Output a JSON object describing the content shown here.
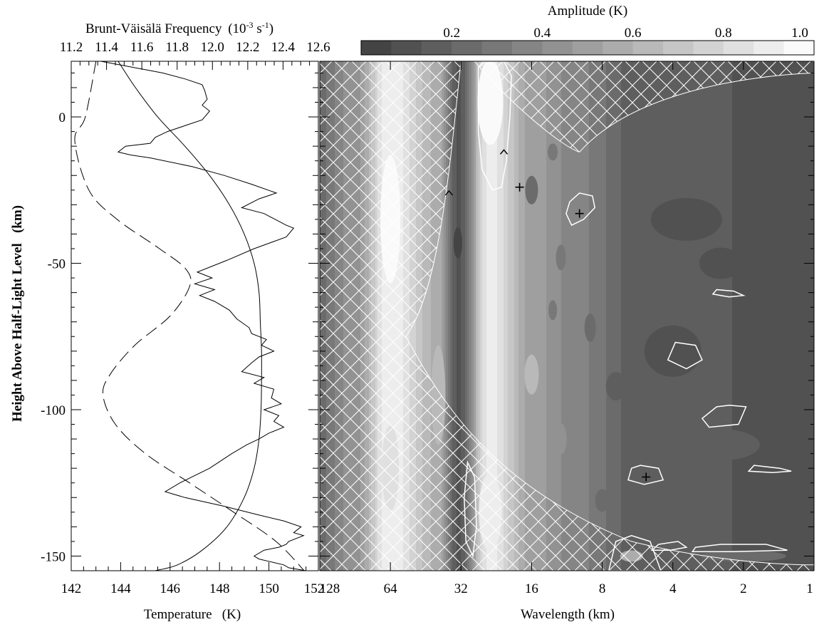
{
  "chart_data": [
    {
      "type": "line",
      "panel": "profiles",
      "xlabel": "Temperature   (K)",
      "ylabel": "Height Above Half-Light Level   (km)",
      "xlim": [
        142,
        152
      ],
      "ylim": [
        -155,
        19
      ],
      "xticks": [
        142,
        144,
        146,
        148,
        150,
        152
      ],
      "yticks": [
        0,
        -50,
        -100,
        -150
      ],
      "top_axis": {
        "label": "Brunt-Väisälä Frequency",
        "unit_prefix": "(10",
        "unit_exp1": "-3",
        "unit_mid": " s",
        "unit_exp2": "-1",
        "unit_suffix": ")",
        "ticks": [
          "11.2",
          "11.4",
          "11.6",
          "11.8",
          "12.0",
          "12.2",
          "12.4",
          "12.6"
        ],
        "range": [
          11.2,
          12.6
        ]
      },
      "series": [
        {
          "style": "solid-smooth",
          "axis": "temperature",
          "x": [
            143.9,
            144.6,
            145.5,
            146.6,
            147.6,
            148.4,
            149.0,
            149.4,
            149.6,
            149.65,
            149.7,
            149.7,
            149.68,
            149.6,
            149.4,
            149.0,
            148.3,
            147.3,
            146.3,
            145.4
          ],
          "y": [
            19,
            10,
            0,
            -10,
            -20,
            -30,
            -40,
            -50,
            -60,
            -70,
            -80,
            -90,
            -100,
            -110,
            -120,
            -130,
            -140,
            -148,
            -153,
            -155
          ]
        },
        {
          "style": "dashed",
          "axis": "brunt_vaisala",
          "x": [
            11.34,
            11.28,
            11.22,
            11.3,
            11.46,
            11.7,
            11.85,
            11.87,
            11.76,
            11.56,
            11.42,
            11.38,
            11.45,
            11.62,
            11.87,
            12.12,
            12.36,
            12.52
          ],
          "y": [
            19,
            0,
            -8,
            -25,
            -35,
            -45,
            -52,
            -58,
            -68,
            -78,
            -88,
            -95,
            -105,
            -115,
            -125,
            -135,
            -145,
            -155
          ]
        },
        {
          "style": "solid-detailed",
          "axis": "temperature",
          "x": [
            143.2,
            145.7,
            146.6,
            147.3,
            147.4,
            147.5,
            147.3,
            147.6,
            147.3,
            146.6,
            145.9,
            145.4,
            145.2,
            144.2,
            143.9,
            144.4,
            145.2,
            146.9,
            148.2,
            149.3,
            150.3,
            149.6,
            148.9,
            149.8,
            150.7,
            151.0,
            150.7,
            149.4,
            148.3,
            147.1,
            147.7,
            147.0,
            147.8,
            147.2,
            147.8,
            148.4,
            148.7,
            149.2,
            149.3,
            149.9,
            149.7,
            150.2,
            149.6,
            149.3,
            148.9,
            149.8,
            149.4,
            150.2,
            150.1,
            150.5,
            149.8,
            150.4,
            150.2,
            150.6,
            150.0,
            149.6,
            149.1,
            148.5,
            147.6,
            146.4,
            145.8,
            146.6,
            148.2,
            149.6,
            150.6,
            151.3,
            151.0,
            151.4,
            150.8,
            150.7,
            150.4,
            149.8,
            149.4,
            149.6,
            150.1,
            150.6,
            150.8,
            151.5
          ],
          "y": [
            19,
            15,
            13,
            11,
            9,
            6,
            4,
            2,
            -1,
            -3,
            -5,
            -7,
            -9,
            -10,
            -12,
            -13,
            -14,
            -17,
            -20,
            -23,
            -26,
            -28,
            -31,
            -33,
            -37,
            -38,
            -41,
            -45,
            -49,
            -53,
            -55,
            -57,
            -59,
            -61,
            -63,
            -66,
            -69,
            -72,
            -74,
            -76,
            -78,
            -80,
            -82,
            -84,
            -87,
            -89,
            -91,
            -93,
            -96,
            -98,
            -100,
            -102,
            -104,
            -106,
            -108,
            -110,
            -112,
            -115,
            -120,
            -125,
            -128,
            -130,
            -133,
            -136,
            -138,
            -140,
            -142,
            -143,
            -145,
            -146,
            -147,
            -148,
            -150,
            -151,
            -152,
            -153,
            -154,
            -155
          ]
        }
      ]
    },
    {
      "type": "heatmap",
      "panel": "wavelet",
      "xlabel": "Wavelength (km)",
      "xscale": "log2",
      "xlim": [
        128,
        1
      ],
      "ylim": [
        -155,
        19
      ],
      "xtick_values": [
        128,
        64,
        32,
        16,
        8,
        4,
        2,
        1
      ],
      "xticks": [
        "128",
        "64",
        "32",
        "16",
        "8",
        "4",
        "2",
        "1"
      ],
      "colorbar": {
        "label": "Amplitude (K)",
        "ticks": [
          "0.2",
          "0.4",
          "0.6",
          "0.8",
          "1.0"
        ],
        "tick_values": [
          0.2,
          0.4,
          0.6,
          0.8,
          1.0
        ],
        "range": [
          0,
          1
        ],
        "levels": 15
      },
      "ridges": [
        {
          "wavelength": 128,
          "amplitude": 0.25
        },
        {
          "wavelength": 90,
          "amplitude": 0.45
        },
        {
          "wavelength": 64,
          "amplitude": 0.93
        },
        {
          "wavelength": 40,
          "amplitude": 0.58
        },
        {
          "wavelength": 33,
          "amplitude": 0.12
        },
        {
          "wavelength": 24,
          "amplitude": 0.9
        },
        {
          "wavelength": 16,
          "amplitude": 0.5
        },
        {
          "wavelength": 10,
          "amplitude": 0.35
        },
        {
          "wavelength": 6,
          "amplitude": 0.18
        },
        {
          "wavelength": 1,
          "amplitude": 0.1
        }
      ],
      "markers": [
        {
          "symbol": "^",
          "wavelength": 21,
          "height": -12
        },
        {
          "symbol": "^",
          "wavelength": 36,
          "height": -26
        },
        {
          "symbol": "+",
          "wavelength": 18,
          "height": -24
        },
        {
          "symbol": "+",
          "wavelength": 10,
          "height": -33
        },
        {
          "symbol": "+",
          "wavelength": 5.2,
          "height": -123
        }
      ]
    }
  ]
}
